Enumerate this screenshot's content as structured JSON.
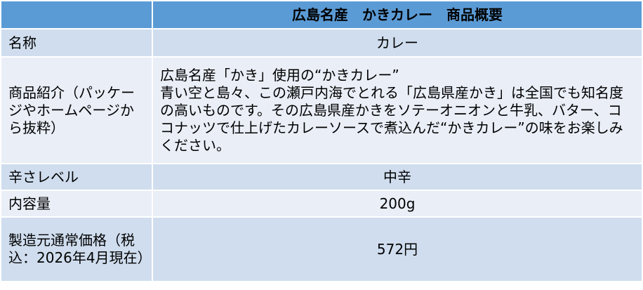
{
  "header": {
    "left": "",
    "title": "広島名産　かきカレー　商品概要"
  },
  "rows": [
    {
      "label": "名称",
      "value": "カレー"
    },
    {
      "label": "商品紹介（パッケージやホームページから抜粋）",
      "value_lines": [
        "広島名産「かき」使用の“かきカレー”",
        "青い空と島々、この瀬戸内海でとれる「広島県産かき」は全国でも知名度の高いものです。その広島県産かきをソテーオニオンと牛乳、バター、ココナッツで仕上げたカレーソースで煮込んだ“かきカレー”の味をお楽しみください。"
      ]
    },
    {
      "label": "辛さレベル",
      "value": "中辛"
    },
    {
      "label": "内容量",
      "value": "200g"
    },
    {
      "label": "製造元通常価格（税込：2026年4月現在）",
      "value": "572円"
    }
  ],
  "colors": {
    "header": "#5B9BD5",
    "row_dark": "#CFDDEE",
    "row_light": "#E9EEF7"
  }
}
